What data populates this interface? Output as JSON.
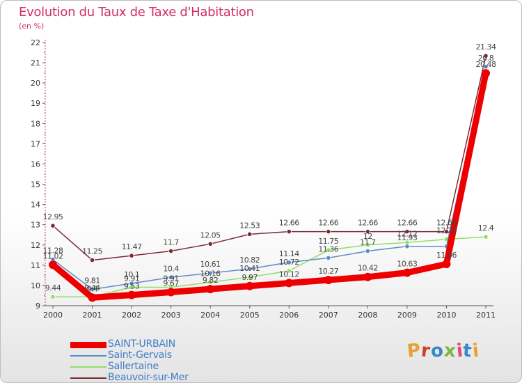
{
  "header": {
    "title": "Evolution du Taux de Taxe d'Habitation",
    "unit": "(en %)"
  },
  "brand": {
    "letters": [
      "P",
      "r",
      "o",
      "x",
      "i",
      "t",
      "i"
    ],
    "colors": [
      "#e8a030",
      "#d0402a",
      "#3a88c8",
      "#7ab83a",
      "#e04878",
      "#3a88c8",
      "#e8a030"
    ]
  },
  "chart_data": {
    "type": "line",
    "title": "Evolution du Taux de Taxe d'Habitation",
    "ylabel": "(en %)",
    "xlabel": "",
    "ylim": [
      9,
      22
    ],
    "yticks": [
      9,
      10,
      11,
      12,
      13,
      14,
      15,
      16,
      17,
      18,
      19,
      20,
      21,
      22
    ],
    "grid": false,
    "legend_position": "bottom-left",
    "categories": [
      "2000",
      "2001",
      "2002",
      "2003",
      "2004",
      "2005",
      "2006",
      "2007",
      "2008",
      "2009",
      "2010",
      "2011"
    ],
    "series": [
      {
        "name": "SAINT-URBAIN",
        "color": "#ee0000",
        "values": [
          11.02,
          9.4,
          9.53,
          9.67,
          9.82,
          9.97,
          10.12,
          10.27,
          10.42,
          10.63,
          11.06,
          20.48
        ],
        "labels": [
          "11.02",
          "9.4",
          "9.53",
          "9.67",
          "9.82",
          "9.97",
          "10.12",
          "10.27",
          "10.42",
          "10.63",
          "11.06",
          "20.48"
        ]
      },
      {
        "name": "Saint-Gervais",
        "color": "#5b8dc6",
        "values": [
          11.28,
          9.81,
          10.1,
          10.4,
          10.61,
          10.82,
          11.14,
          11.36,
          11.7,
          11.93,
          11.93,
          20.8
        ],
        "labels": [
          "11.28",
          "9.81",
          "10.1",
          "10.4",
          "10.61",
          "10.82",
          "11.14",
          "11.36",
          "11.7",
          "11.93",
          "",
          "20.8"
        ]
      },
      {
        "name": "Sallertaine",
        "color": "#8ee067",
        "values": [
          9.44,
          9.44,
          9.91,
          9.91,
          10.16,
          10.41,
          10.72,
          11.75,
          12.0,
          12.12,
          12.28,
          12.4
        ],
        "labels": [
          "9.44",
          "9.44",
          "9.91",
          "9.91",
          "10.16",
          "10.41",
          "10.72",
          "11.75",
          "12",
          "12.12",
          "12.28",
          "12.4"
        ]
      },
      {
        "name": "Beauvoir-sur-Mer",
        "color": "#7a2a34",
        "values": [
          12.95,
          11.25,
          11.47,
          11.7,
          12.05,
          12.53,
          12.66,
          12.66,
          12.66,
          12.66,
          12.66,
          21.34
        ],
        "labels": [
          "12.95",
          "11.25",
          "11.47",
          "11.7",
          "12.05",
          "12.53",
          "12.66",
          "12.66",
          "12.66",
          "12.66",
          "12.66",
          "21.34"
        ]
      }
    ]
  }
}
